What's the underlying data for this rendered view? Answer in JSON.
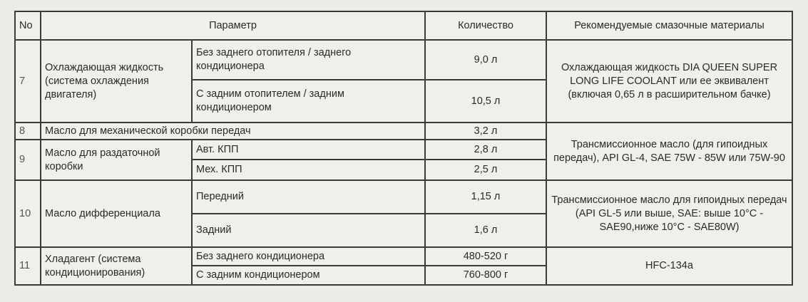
{
  "header": {
    "no": "No",
    "parameter": "Параметр",
    "quantity": "Количество",
    "lubricants": "Рекомендуемые смазочные материалы"
  },
  "rows": {
    "r7": {
      "no": "7",
      "param": "Охлаждающая жидкость (система охлаждения двигателя)",
      "sub": [
        {
          "label": "Без заднего отопителя / заднего кондиционера",
          "qty": "9,0 л"
        },
        {
          "label": "С задним отопителем / задним кондиционером",
          "qty": "10,5 л"
        }
      ],
      "lubricant": "Охлаждающая жидкость DIA QUEEN SUPER LONG LIFE COOLANT или ее эквивалент (включая 0,65 л в расширительном бачке)"
    },
    "r8": {
      "no": "8",
      "param": "Масло для механической коробки передач",
      "qty": "3,2 л",
      "lubricant": "Трансмиссионное масло (для гипоидных передач), API GL-4, SAE 75W - 85W или 75W-90"
    },
    "r9": {
      "no": "9",
      "param": "Масло для раздаточной коробки",
      "sub": [
        {
          "label": "Авт. КПП",
          "qty": "2,8 л"
        },
        {
          "label": "Мех. КПП",
          "qty": "2,5 л"
        }
      ]
    },
    "r10": {
      "no": "10",
      "param": "Масло дифференциала",
      "sub": [
        {
          "label": "Передний",
          "qty": "1,15 л"
        },
        {
          "label": "Задний",
          "qty": "1,6 л"
        }
      ],
      "lubricant": "Трансмиссионное масло для гипоидных передач (API GL-5 или выше, SAE: выше 10°C - SAE90,ниже 10°C - SAE80W)"
    },
    "r11": {
      "no": "11",
      "param": "Хладагент (система кондиционирования)",
      "sub": [
        {
          "label": "Без заднего кондиционера",
          "qty": "480-520 г"
        },
        {
          "label": "С задним кондиционером",
          "qty": "760-800 г"
        }
      ],
      "lubricant": "HFC-134a"
    }
  }
}
